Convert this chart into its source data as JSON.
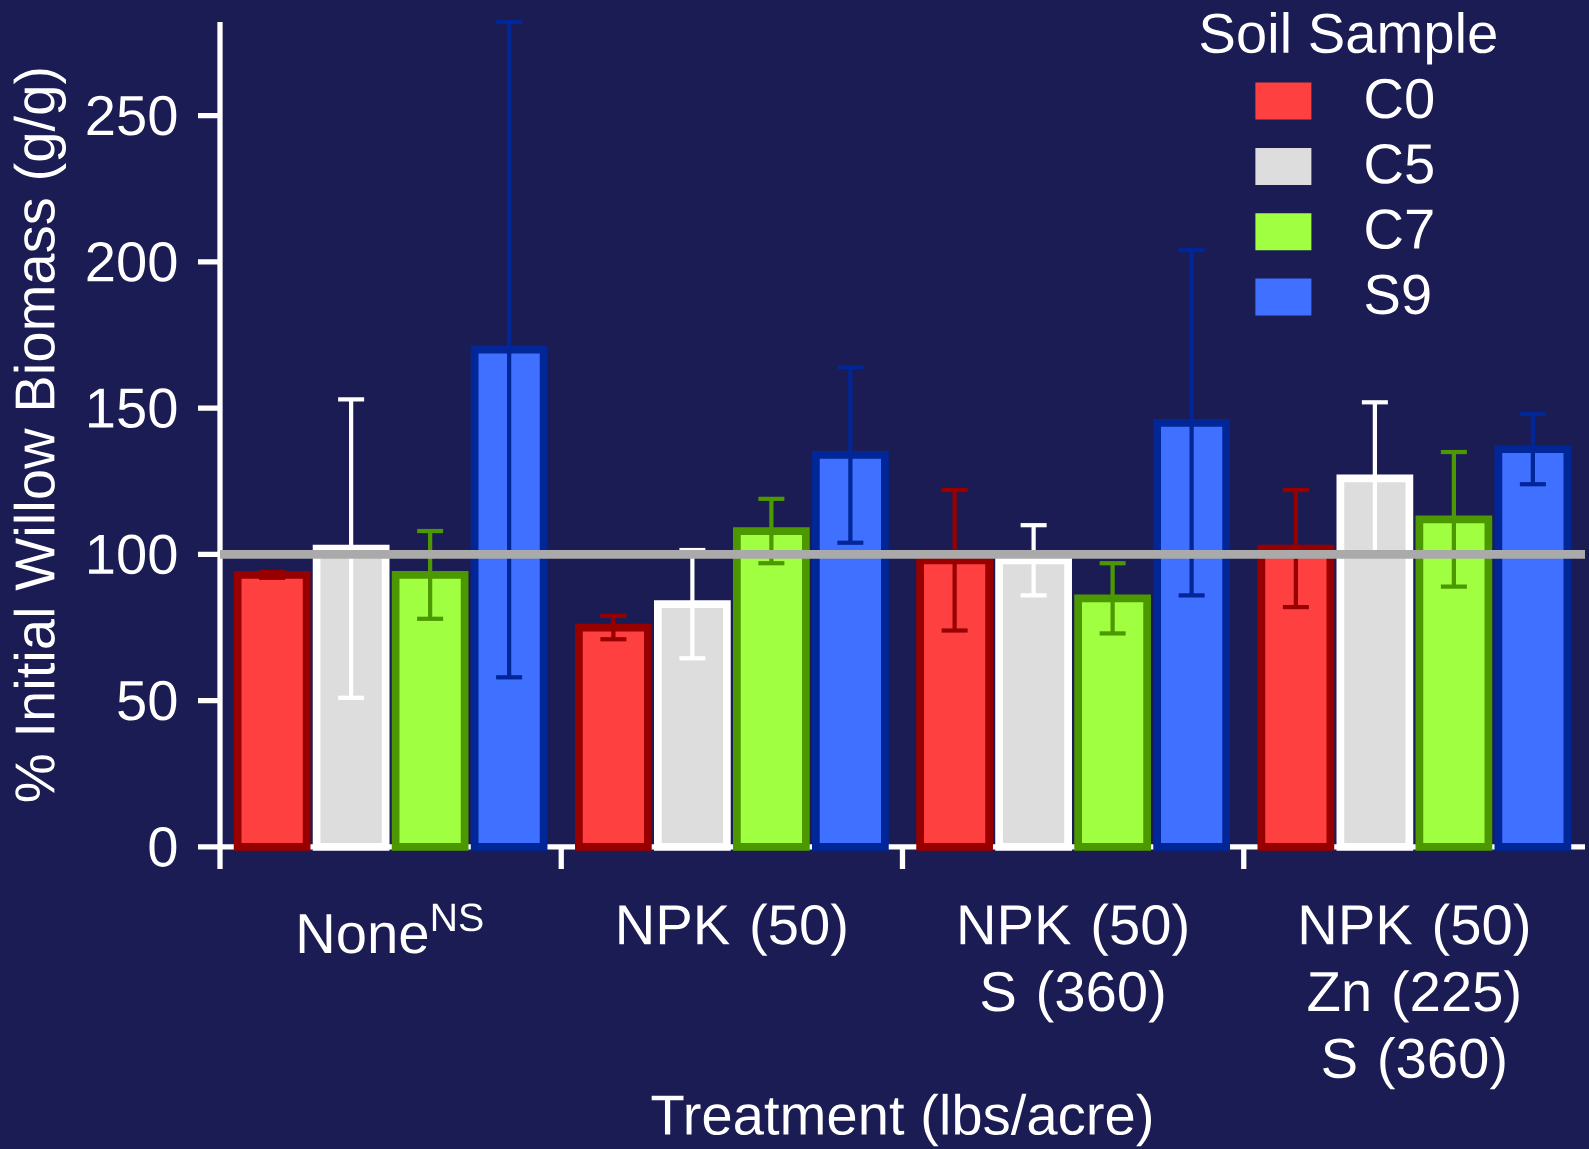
{
  "chart_data": {
    "type": "bar",
    "xlabel": "Treatment (lbs/acre)",
    "ylabel": "% Initial Willow Biomass (g/g)",
    "legend_title": "Soil Sample",
    "categories": [
      "None$^{NS}$",
      "NPK (50)",
      "NPK (50) S (360)",
      "NPK (50) Zn (225) S (360)"
    ],
    "series": [
      {
        "name": "C0",
        "color": "#ff4040",
        "values": [
          93,
          75,
          98,
          102
        ],
        "errors": [
          1,
          4,
          24,
          20
        ]
      },
      {
        "name": "C5",
        "color": "#dddddd",
        "values": [
          102,
          83,
          98,
          126
        ],
        "errors": [
          51,
          18.5,
          12,
          26
        ]
      },
      {
        "name": "C7",
        "color": "#a0ff40",
        "values": [
          93,
          108,
          85,
          112
        ],
        "errors": [
          15,
          11,
          12,
          23
        ]
      },
      {
        "name": "S9",
        "color": "#4070ff",
        "values": [
          170,
          134,
          145,
          136
        ],
        "errors": [
          112,
          30,
          59,
          12
        ]
      }
    ],
    "ylim": [
      0,
      282
    ],
    "yticks": [
      0,
      50,
      100,
      150,
      200,
      250
    ],
    "legend": "top right",
    "ref_lines": [
      {
        "axis": "y",
        "value": 100,
        "color": "#aaaaaa"
      }
    ]
  }
}
